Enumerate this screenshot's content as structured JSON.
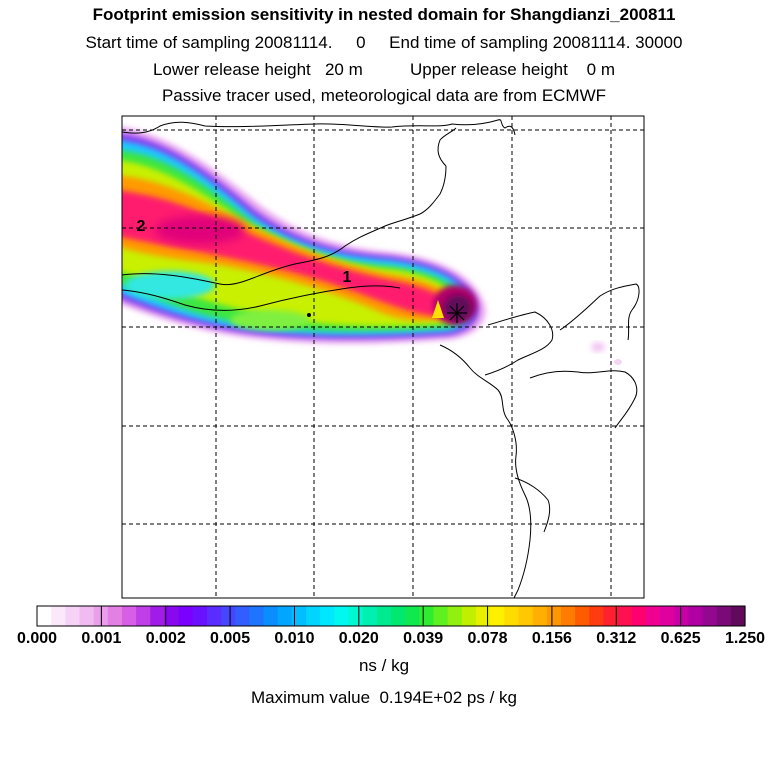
{
  "title": "Footprint emission sensitivity in nested domain for Shangdianzi_200811",
  "sampling_line": "Start time of sampling 20081114.     0     End time of sampling 20081114. 30000",
  "release_line": "Lower release height   20 m          Upper release height    0 m",
  "tracer_line": "Passive tracer used, meteorological data are from ECMWF",
  "map": {
    "point_labels": [
      "2",
      "1"
    ],
    "colors": {
      "plume_core": "#ff0080",
      "plume_peak": "#7a0a66",
      "coast": "#000000"
    }
  },
  "colorbar": {
    "ticks": [
      "0.000",
      "0.001",
      "0.002",
      "0.005",
      "0.010",
      "0.020",
      "0.039",
      "0.078",
      "0.156",
      "0.312",
      "0.625",
      "1.250"
    ],
    "colors": [
      "#ffffff",
      "#fbe9fb",
      "#f6d3f6",
      "#f0bbf0",
      "#ea9fea",
      "#e47fe4",
      "#d65fe6",
      "#c03ee8",
      "#a21ce8",
      "#8a08f0",
      "#7a00ff",
      "#6a10ff",
      "#5a2cff",
      "#4646ff",
      "#325eff",
      "#1e74ff",
      "#0a8eff",
      "#00a6ff",
      "#00beff",
      "#00d4ff",
      "#00e8ff",
      "#00f8f0",
      "#00f8d0",
      "#00f0b0",
      "#00ea90",
      "#00e870",
      "#10e850",
      "#30ec30",
      "#60f020",
      "#90f010",
      "#c0f000",
      "#e8f000",
      "#fff000",
      "#ffdc00",
      "#ffc800",
      "#ffb000",
      "#ff9800",
      "#ff7c00",
      "#ff5c00",
      "#ff3c10",
      "#ff2030",
      "#ff1050",
      "#ff0070",
      "#f00090",
      "#e000a0",
      "#c800a8",
      "#b000a4",
      "#940890",
      "#7a0a78",
      "#600a5c"
    ]
  },
  "units": "ns / kg",
  "max_value": "Maximum value  0.194E+02 ps / kg"
}
